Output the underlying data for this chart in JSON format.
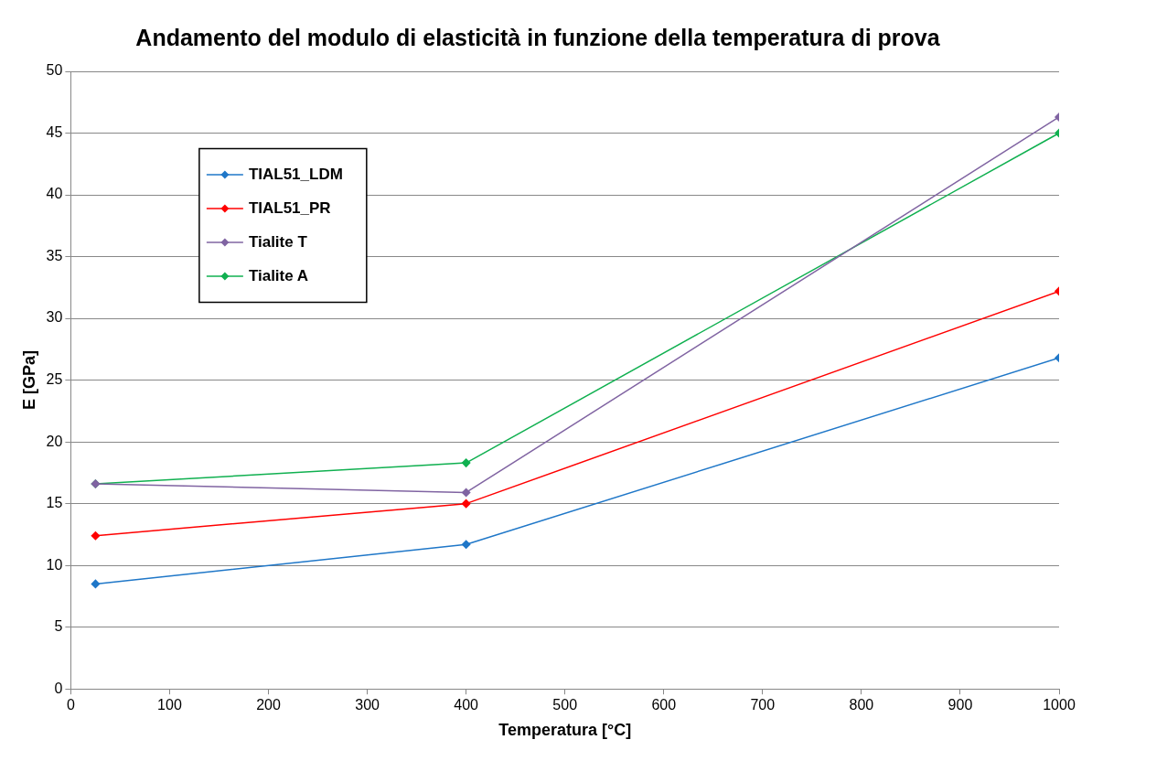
{
  "chart_data": {
    "type": "line",
    "title": "Andamento del modulo di elasticità in funzione della temperatura di prova",
    "xlabel": "Temperatura [°C]",
    "ylabel": "E [GPa]",
    "x": [
      25,
      400,
      1000
    ],
    "series": [
      {
        "name": "TIAL51_LDM",
        "color": "#1f77c8",
        "values": [
          8.5,
          11.7,
          26.8
        ]
      },
      {
        "name": "TIAL51_PR",
        "color": "#ff0000",
        "values": [
          12.4,
          15.0,
          32.2
        ]
      },
      {
        "name": "Tialite T",
        "color": "#8064a2",
        "values": [
          16.6,
          15.9,
          46.3
        ]
      },
      {
        "name": "Tialite A",
        "color": "#10b050",
        "values": [
          16.6,
          18.3,
          45.0
        ]
      }
    ],
    "xlim": [
      0,
      1000
    ],
    "xticks": [
      0,
      100,
      200,
      300,
      400,
      500,
      600,
      700,
      800,
      900,
      1000
    ],
    "ylim": [
      0,
      50
    ],
    "yticks": [
      0,
      5,
      10,
      15,
      20,
      25,
      30,
      35,
      40,
      45,
      50
    ],
    "grid": "y",
    "legend": "top left",
    "marker": "diamond",
    "line_style": "solid"
  }
}
